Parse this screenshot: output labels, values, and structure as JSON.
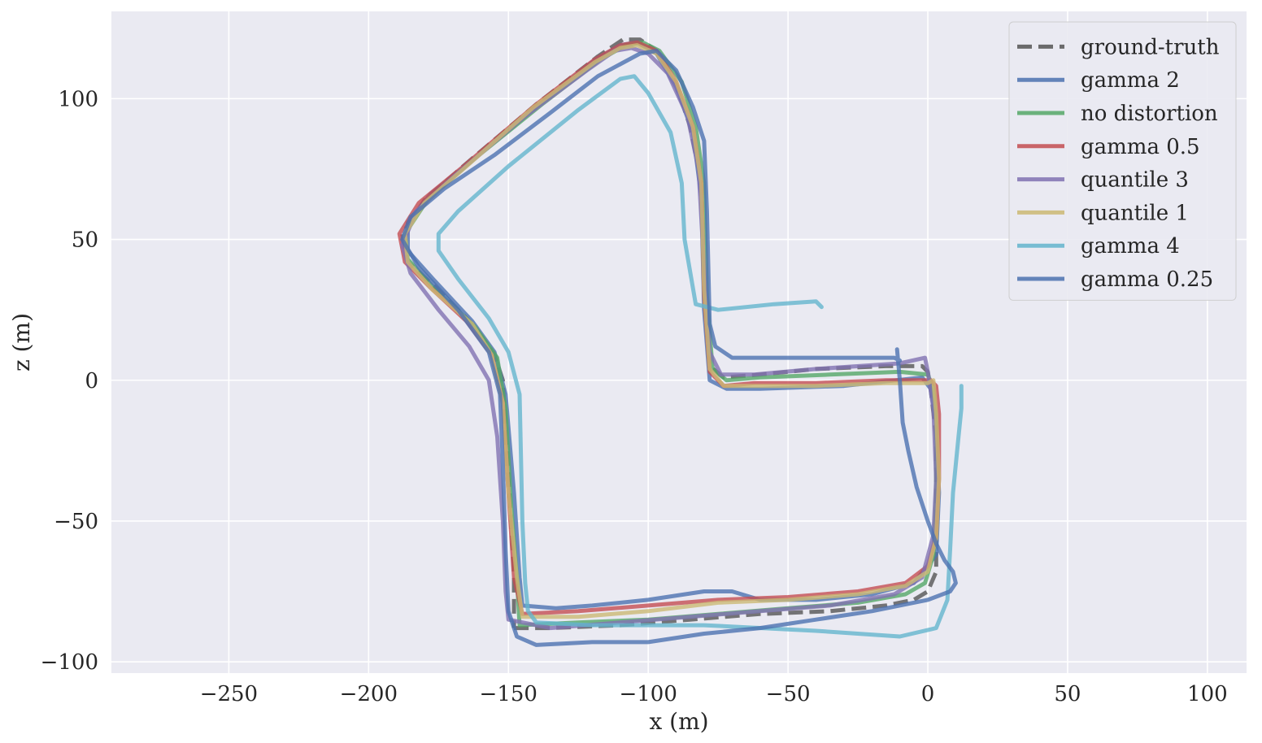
{
  "chart_data": {
    "type": "line",
    "xlabel": "x (m)",
    "ylabel": "z (m)",
    "xlim": [
      -292,
      114
    ],
    "ylim": [
      -104,
      131
    ],
    "xticks": [
      -250,
      -200,
      -150,
      -100,
      -50,
      0,
      50,
      100
    ],
    "yticks": [
      -100,
      -50,
      0,
      50,
      100
    ],
    "xtick_labels": [
      "−250",
      "−200",
      "−150",
      "−100",
      "−50",
      "0",
      "50",
      "100"
    ],
    "ytick_labels": [
      "−100",
      "−50",
      "0",
      "50",
      "100"
    ],
    "grid": true,
    "legend_position": "top-right",
    "background_color": "#eaeaf2",
    "series": [
      {
        "name": "ground-truth",
        "color": "#555555",
        "dashed": true,
        "points": [
          [
            -148,
            -88
          ],
          [
            -135,
            -88
          ],
          [
            -110,
            -87
          ],
          [
            -85,
            -85
          ],
          [
            -60,
            -83
          ],
          [
            -35,
            -82
          ],
          [
            -15,
            -80
          ],
          [
            -5,
            -78
          ],
          [
            0,
            -75
          ],
          [
            3,
            -68
          ],
          [
            3,
            -50
          ],
          [
            3,
            -20
          ],
          [
            1,
            -3
          ],
          [
            0,
            3
          ],
          [
            -2,
            5
          ],
          [
            -15,
            5
          ],
          [
            -40,
            4
          ],
          [
            -60,
            2
          ],
          [
            -73,
            1
          ],
          [
            -78,
            5
          ],
          [
            -80,
            30
          ],
          [
            -81,
            70
          ],
          [
            -85,
            90
          ],
          [
            -90,
            105
          ],
          [
            -97,
            117
          ],
          [
            -103,
            121
          ],
          [
            -109,
            121
          ],
          [
            -118,
            115
          ],
          [
            -140,
            98
          ],
          [
            -165,
            77
          ],
          [
            -180,
            64
          ],
          [
            -188,
            52
          ],
          [
            -186,
            42
          ],
          [
            -175,
            32
          ],
          [
            -162,
            19
          ],
          [
            -155,
            9
          ],
          [
            -152,
            0
          ],
          [
            -151,
            -20
          ],
          [
            -149,
            -50
          ],
          [
            -148,
            -70
          ],
          [
            -148,
            -88
          ]
        ]
      },
      {
        "name": "gamma 2",
        "color": "#4c72b0",
        "dashed": false,
        "points": [
          [
            -145,
            -80
          ],
          [
            -133,
            -81
          ],
          [
            -120,
            -80
          ],
          [
            -100,
            -78
          ],
          [
            -80,
            -75
          ],
          [
            -70,
            -75
          ],
          [
            -60,
            -78
          ],
          [
            -40,
            -78
          ],
          [
            -20,
            -76
          ],
          [
            -5,
            -72
          ],
          [
            3,
            -62
          ],
          [
            4,
            -40
          ],
          [
            3,
            -15
          ],
          [
            1,
            -3
          ],
          [
            -2,
            1
          ],
          [
            -30,
            -2
          ],
          [
            -60,
            -3
          ],
          [
            -72,
            -3
          ],
          [
            -78,
            0
          ],
          [
            -80,
            25
          ],
          [
            -81,
            65
          ],
          [
            -84,
            88
          ],
          [
            -90,
            104
          ],
          [
            -97,
            116
          ],
          [
            -104,
            120
          ],
          [
            -110,
            119
          ],
          [
            -120,
            113
          ],
          [
            -140,
            97
          ],
          [
            -163,
            78
          ],
          [
            -178,
            66
          ],
          [
            -186,
            56
          ],
          [
            -186,
            46
          ],
          [
            -177,
            36
          ],
          [
            -163,
            21
          ],
          [
            -155,
            10
          ],
          [
            -151,
            -5
          ],
          [
            -148,
            -40
          ],
          [
            -146,
            -70
          ],
          [
            -145,
            -80
          ]
        ]
      },
      {
        "name": "no distortion",
        "color": "#55a868",
        "dashed": false,
        "points": [
          [
            -146,
            -87
          ],
          [
            -125,
            -86
          ],
          [
            -100,
            -85
          ],
          [
            -75,
            -83
          ],
          [
            -50,
            -81
          ],
          [
            -25,
            -79
          ],
          [
            -8,
            -76
          ],
          [
            -1,
            -72
          ],
          [
            2,
            -62
          ],
          [
            3,
            -40
          ],
          [
            3,
            -15
          ],
          [
            2,
            -3
          ],
          [
            0,
            2
          ],
          [
            -10,
            3
          ],
          [
            -35,
            2
          ],
          [
            -60,
            1
          ],
          [
            -72,
            0
          ],
          [
            -77,
            4
          ],
          [
            -79,
            30
          ],
          [
            -80,
            70
          ],
          [
            -83,
            90
          ],
          [
            -88,
            106
          ],
          [
            -96,
            117
          ],
          [
            -102,
            120
          ],
          [
            -108,
            119
          ],
          [
            -117,
            114
          ],
          [
            -138,
            98
          ],
          [
            -163,
            78
          ],
          [
            -179,
            64
          ],
          [
            -187,
            52
          ],
          [
            -186,
            43
          ],
          [
            -176,
            32
          ],
          [
            -162,
            19
          ],
          [
            -154,
            8
          ],
          [
            -151,
            -10
          ],
          [
            -149,
            -45
          ],
          [
            -147,
            -70
          ],
          [
            -146,
            -87
          ]
        ]
      },
      {
        "name": "gamma 0.5",
        "color": "#c44e52",
        "dashed": false,
        "points": [
          [
            -145,
            -83
          ],
          [
            -125,
            -82
          ],
          [
            -100,
            -80
          ],
          [
            -75,
            -78
          ],
          [
            -50,
            -77
          ],
          [
            -25,
            -75
          ],
          [
            -8,
            -72
          ],
          [
            0,
            -66
          ],
          [
            3,
            -55
          ],
          [
            4,
            -35
          ],
          [
            4,
            -12
          ],
          [
            3,
            -2
          ],
          [
            1,
            0
          ],
          [
            -15,
            0
          ],
          [
            -40,
            -1
          ],
          [
            -62,
            -1
          ],
          [
            -73,
            -2
          ],
          [
            -78,
            3
          ],
          [
            -80,
            30
          ],
          [
            -81,
            70
          ],
          [
            -84,
            90
          ],
          [
            -90,
            106
          ],
          [
            -97,
            117
          ],
          [
            -104,
            120
          ],
          [
            -110,
            119
          ],
          [
            -119,
            114
          ],
          [
            -140,
            98
          ],
          [
            -166,
            76
          ],
          [
            -182,
            63
          ],
          [
            -189,
            52
          ],
          [
            -187,
            42
          ],
          [
            -178,
            33
          ],
          [
            -165,
            21
          ],
          [
            -156,
            9
          ],
          [
            -152,
            -8
          ],
          [
            -150,
            -40
          ],
          [
            -148,
            -70
          ],
          [
            -145,
            -83
          ]
        ]
      },
      {
        "name": "quantile 3",
        "color": "#8172b2",
        "dashed": false,
        "points": [
          [
            -150,
            -85
          ],
          [
            -135,
            -88
          ],
          [
            -110,
            -86
          ],
          [
            -85,
            -84
          ],
          [
            -60,
            -82
          ],
          [
            -35,
            -80
          ],
          [
            -12,
            -76
          ],
          [
            -2,
            -70
          ],
          [
            2,
            -55
          ],
          [
            3,
            -35
          ],
          [
            2,
            -10
          ],
          [
            0,
            3
          ],
          [
            -1,
            8
          ],
          [
            -10,
            6
          ],
          [
            -40,
            4
          ],
          [
            -62,
            2
          ],
          [
            -74,
            2
          ],
          [
            -78,
            10
          ],
          [
            -80,
            40
          ],
          [
            -82,
            75
          ],
          [
            -86,
            94
          ],
          [
            -93,
            109
          ],
          [
            -100,
            116
          ],
          [
            -106,
            118
          ],
          [
            -112,
            117
          ],
          [
            -122,
            110
          ],
          [
            -145,
            93
          ],
          [
            -170,
            72
          ],
          [
            -183,
            60
          ],
          [
            -188,
            48
          ],
          [
            -185,
            38
          ],
          [
            -175,
            25
          ],
          [
            -164,
            12
          ],
          [
            -157,
            0
          ],
          [
            -154,
            -20
          ],
          [
            -152,
            -50
          ],
          [
            -151,
            -75
          ],
          [
            -150,
            -85
          ]
        ]
      },
      {
        "name": "quantile 1",
        "color": "#ccb974",
        "dashed": false,
        "points": [
          [
            -145,
            -84
          ],
          [
            -125,
            -84
          ],
          [
            -100,
            -82
          ],
          [
            -75,
            -79
          ],
          [
            -50,
            -78
          ],
          [
            -25,
            -76
          ],
          [
            -8,
            -73
          ],
          [
            0,
            -68
          ],
          [
            3,
            -56
          ],
          [
            4,
            -35
          ],
          [
            3,
            -12
          ],
          [
            2,
            0
          ],
          [
            0,
            -1
          ],
          [
            -15,
            -1
          ],
          [
            -40,
            -2
          ],
          [
            -62,
            -2
          ],
          [
            -73,
            -2
          ],
          [
            -78,
            4
          ],
          [
            -80,
            32
          ],
          [
            -81,
            70
          ],
          [
            -84,
            90
          ],
          [
            -90,
            106
          ],
          [
            -97,
            116
          ],
          [
            -104,
            119
          ],
          [
            -110,
            118
          ],
          [
            -119,
            113
          ],
          [
            -141,
            97
          ],
          [
            -165,
            76
          ],
          [
            -180,
            63
          ],
          [
            -187,
            52
          ],
          [
            -186,
            42
          ],
          [
            -177,
            32
          ],
          [
            -163,
            20
          ],
          [
            -156,
            9
          ],
          [
            -152,
            -8
          ],
          [
            -150,
            -40
          ],
          [
            -147,
            -70
          ],
          [
            -145,
            -84
          ]
        ]
      },
      {
        "name": "gamma 4",
        "color": "#64b5cd",
        "dashed": false,
        "points": [
          [
            -38,
            26
          ],
          [
            -40,
            28
          ],
          [
            -55,
            27
          ],
          [
            -75,
            25
          ],
          [
            -83,
            27
          ],
          [
            -87,
            50
          ],
          [
            -88,
            70
          ],
          [
            -92,
            88
          ],
          [
            -100,
            102
          ],
          [
            -105,
            108
          ],
          [
            -110,
            107
          ],
          [
            -125,
            96
          ],
          [
            -150,
            76
          ],
          [
            -168,
            60
          ],
          [
            -175,
            52
          ],
          [
            -175,
            46
          ],
          [
            -168,
            36
          ],
          [
            -157,
            22
          ],
          [
            -150,
            10
          ],
          [
            -146,
            -5
          ],
          [
            -145,
            -50
          ],
          [
            -144,
            -72
          ],
          [
            -143,
            -82
          ],
          [
            -140,
            -86
          ],
          [
            -120,
            -87
          ],
          [
            -80,
            -87
          ],
          [
            -40,
            -89
          ],
          [
            -10,
            -91
          ],
          [
            3,
            -88
          ],
          [
            7,
            -78
          ],
          [
            8,
            -60
          ],
          [
            9,
            -40
          ],
          [
            11,
            -20
          ],
          [
            12,
            -10
          ],
          [
            12,
            -2
          ]
        ]
      },
      {
        "name": "gamma 0.25",
        "color": "#4c72b0",
        "dashed": false,
        "points": [
          [
            -11,
            11
          ],
          [
            -10,
            0
          ],
          [
            -9,
            -15
          ],
          [
            -7,
            -25
          ],
          [
            -4,
            -38
          ],
          [
            0,
            -50
          ],
          [
            3,
            -58
          ],
          [
            6,
            -64
          ],
          [
            9,
            -68
          ],
          [
            10,
            -72
          ],
          [
            8,
            -75
          ],
          [
            0,
            -78
          ],
          [
            -20,
            -82
          ],
          [
            -40,
            -85
          ],
          [
            -60,
            -88
          ],
          [
            -80,
            -90
          ],
          [
            -100,
            -93
          ],
          [
            -120,
            -93
          ],
          [
            -140,
            -94
          ],
          [
            -147,
            -91
          ],
          [
            -150,
            -82
          ],
          [
            -151,
            -60
          ],
          [
            -152,
            -30
          ],
          [
            -153,
            -5
          ],
          [
            -157,
            10
          ],
          [
            -168,
            25
          ],
          [
            -182,
            40
          ],
          [
            -188,
            50
          ],
          [
            -185,
            58
          ],
          [
            -173,
            68
          ],
          [
            -155,
            80
          ],
          [
            -135,
            95
          ],
          [
            -118,
            108
          ],
          [
            -103,
            116
          ],
          [
            -97,
            117
          ],
          [
            -90,
            110
          ],
          [
            -84,
            97
          ],
          [
            -80,
            85
          ],
          [
            -79,
            60
          ],
          [
            -78,
            20
          ],
          [
            -76,
            12
          ],
          [
            -70,
            8
          ],
          [
            -50,
            8
          ],
          [
            -30,
            8
          ],
          [
            -12,
            8
          ],
          [
            -10,
            7
          ]
        ]
      }
    ]
  }
}
